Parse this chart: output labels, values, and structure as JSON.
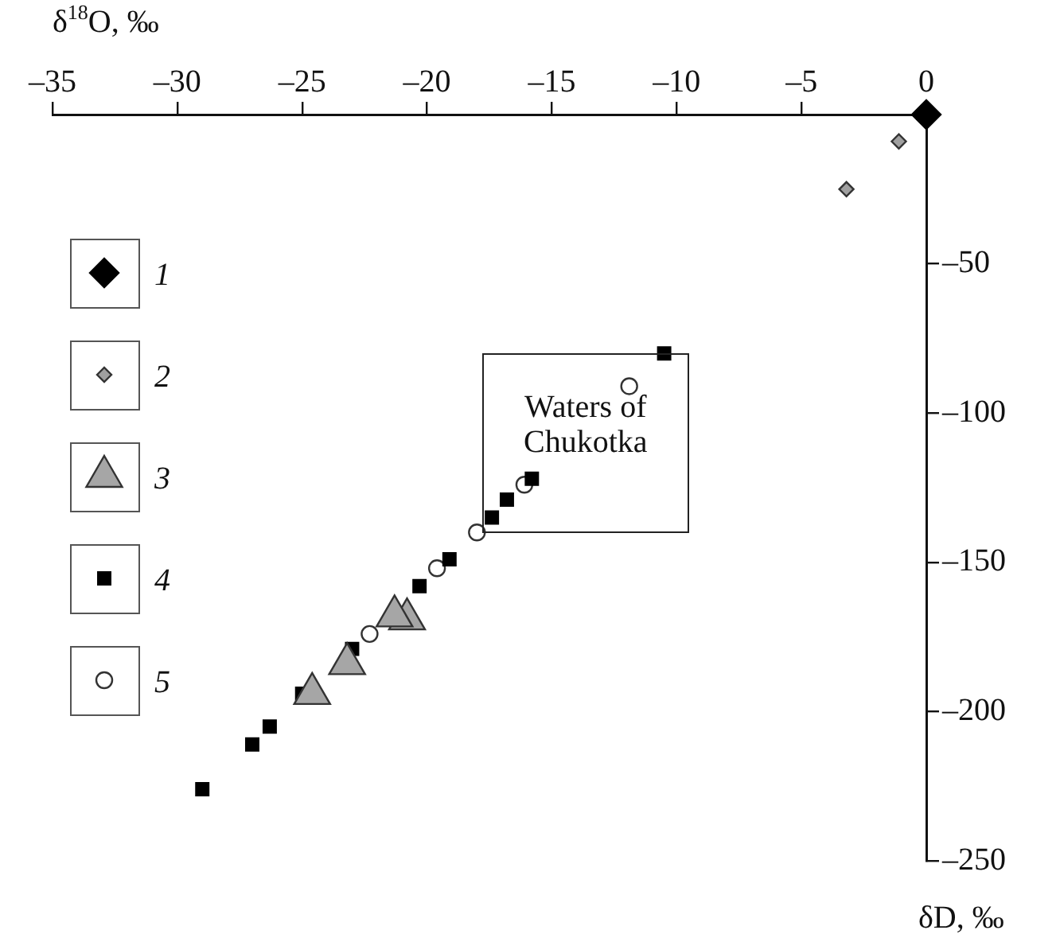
{
  "chart_data": {
    "type": "scatter",
    "xlabel": "δ$^{18}$O, ‰",
    "ylabel": "δD, ‰",
    "xlim": [
      -35,
      0
    ],
    "ylim": [
      -250,
      0
    ],
    "xticks": [
      {
        "value": -35,
        "label": "–35"
      },
      {
        "value": -30,
        "label": "–30"
      },
      {
        "value": -25,
        "label": "–25"
      },
      {
        "value": -20,
        "label": "–20"
      },
      {
        "value": -15,
        "label": "–15"
      },
      {
        "value": -10,
        "label": "–10"
      },
      {
        "value": -5,
        "label": "–5"
      },
      0
    ],
    "yticks": [
      {
        "value": -250,
        "label": "–250"
      },
      {
        "value": -200,
        "label": "–200"
      },
      {
        "value": -150,
        "label": "–150"
      },
      {
        "value": -100,
        "label": "–100"
      },
      {
        "value": -50,
        "label": "–50"
      }
    ],
    "grid": false,
    "legend": "left",
    "annotations": [
      "Waters of Chukotka"
    ],
    "series": [
      {
        "name": "1",
        "color": "#000000",
        "marker": "diamond",
        "x": [
          0
        ],
        "values": [
          0
        ]
      },
      {
        "name": "2",
        "color": "#a0a0a0",
        "marker": "diamond",
        "x": [
          -1.1,
          -3.2
        ],
        "values": [
          -9,
          -25
        ]
      },
      {
        "name": "3",
        "color": "#a6a6a6",
        "marker": "triangle",
        "x": [
          -20.8,
          -21.3,
          -23.2,
          -24.6
        ],
        "values": [
          -169,
          -168,
          -184,
          -194
        ]
      },
      {
        "name": "4",
        "color": "#000000",
        "marker": "square",
        "x": [
          -10.5,
          -15.8,
          -16.8,
          -17.4,
          -19.1,
          -20.3,
          -23.0,
          -25.0,
          -26.3,
          -27.0,
          -29.0
        ],
        "values": [
          -80,
          -122,
          -129,
          -135,
          -149,
          -158,
          -179,
          -194,
          -205,
          -211,
          -226
        ]
      },
      {
        "name": "5",
        "color": "#ffffff",
        "marker": "circle",
        "x": [
          -11.9,
          -16.1,
          -18.0,
          -19.6,
          -22.3
        ],
        "values": [
          -91,
          -124,
          -140,
          -152,
          -174
        ]
      }
    ]
  }
}
